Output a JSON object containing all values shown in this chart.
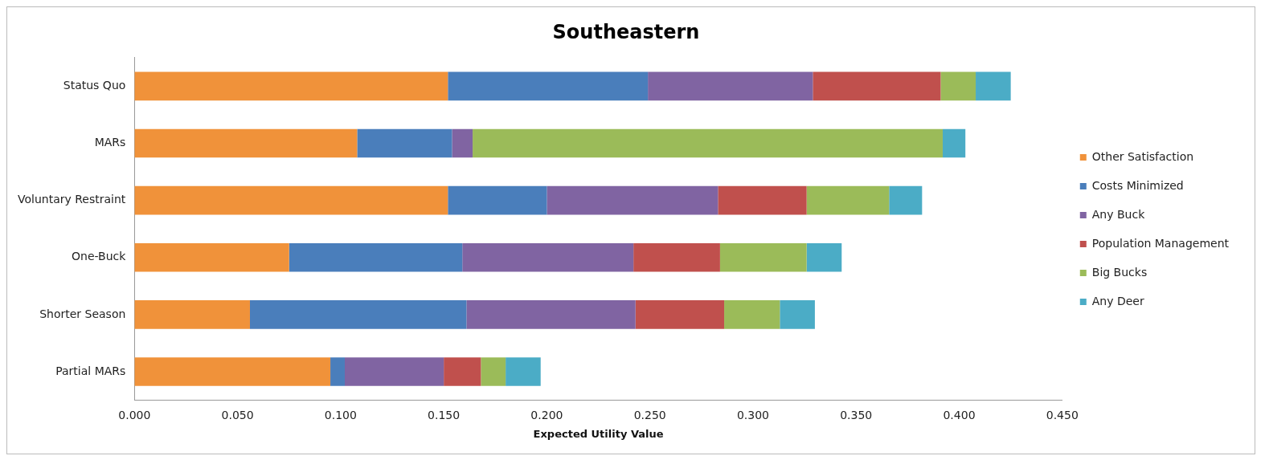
{
  "chart_data": {
    "type": "bar",
    "orientation": "horizontal",
    "stacked": true,
    "title": "Southeastern",
    "xlabel": "Expected Utility Value",
    "categories": [
      "Status Quo",
      "MARs",
      "Voluntary Restraint",
      "One-Buck",
      "Shorter Season",
      "Partial MARs"
    ],
    "series": [
      {
        "name": "Other Satisfaction",
        "color": "#f0923a",
        "values": [
          0.152,
          0.108,
          0.152,
          0.075,
          0.056,
          0.095
        ]
      },
      {
        "name": "Costs Minimized",
        "color": "#4a7ebb",
        "values": [
          0.097,
          0.046,
          0.048,
          0.084,
          0.105,
          0.007
        ]
      },
      {
        "name": "Any Buck",
        "color": "#8064a2",
        "values": [
          0.08,
          0.01,
          0.083,
          0.083,
          0.082,
          0.048
        ]
      },
      {
        "name": "Population Management",
        "color": "#c0504d",
        "values": [
          0.062,
          0,
          0.043,
          0.042,
          0.043,
          0.018
        ]
      },
      {
        "name": "Big Bucks",
        "color": "#9bbb59",
        "values": [
          0.017,
          0.228,
          0.04,
          0.042,
          0.027,
          0.012
        ]
      },
      {
        "name": "Any Deer",
        "color": "#4bacc6",
        "values": [
          0.017,
          0.011,
          0.016,
          0.017,
          0.017,
          0.017
        ]
      }
    ],
    "xlim": [
      0,
      0.45
    ],
    "xticks": [
      {
        "value": 0,
        "label": "0.000"
      },
      {
        "value": 0.05,
        "label": "0.050"
      },
      {
        "value": 0.1,
        "label": "0.100"
      },
      {
        "value": 0.15,
        "label": "0.150"
      },
      {
        "value": 0.2,
        "label": "0.200"
      },
      {
        "value": 0.25,
        "label": "0.250"
      },
      {
        "value": 0.3,
        "label": "0.300"
      },
      {
        "value": 0.35,
        "label": "0.350"
      },
      {
        "value": 0.4,
        "label": "0.400"
      },
      {
        "value": 0.45,
        "label": "0.450"
      }
    ],
    "grid": false,
    "legend": "right"
  }
}
